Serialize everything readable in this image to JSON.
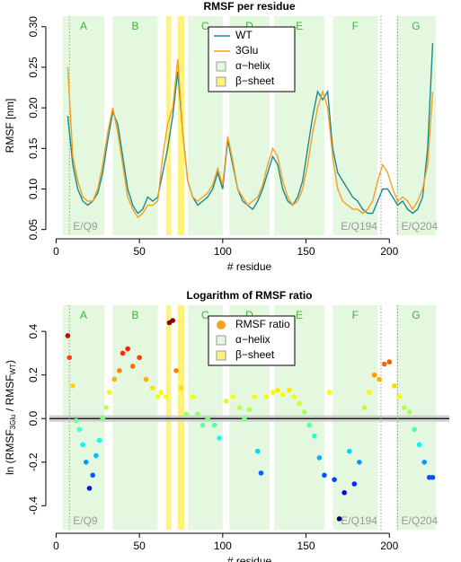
{
  "chart_data": [
    {
      "type": "line",
      "title": "RMSF per residue",
      "xlabel": "# residue",
      "ylabel": "RMSF [nm]",
      "x": [
        7,
        10,
        13,
        16,
        19,
        22,
        25,
        28,
        31,
        34,
        37,
        40,
        43,
        46,
        49,
        52,
        55,
        58,
        61,
        64,
        67,
        70,
        73,
        76,
        79,
        82,
        85,
        88,
        91,
        94,
        97,
        100,
        103,
        106,
        109,
        112,
        115,
        118,
        121,
        124,
        127,
        130,
        133,
        136,
        139,
        142,
        145,
        148,
        151,
        154,
        157,
        160,
        163,
        166,
        169,
        172,
        175,
        178,
        181,
        184,
        187,
        190,
        193,
        196,
        199,
        202,
        205,
        208,
        211,
        214,
        217,
        220,
        223,
        226
      ],
      "series": [
        {
          "name": "WT",
          "color": "#1b8a8f",
          "values": [
            0.19,
            0.13,
            0.1,
            0.085,
            0.08,
            0.085,
            0.095,
            0.12,
            0.16,
            0.195,
            0.18,
            0.14,
            0.1,
            0.08,
            0.07,
            0.075,
            0.09,
            0.085,
            0.09,
            0.12,
            0.15,
            0.19,
            0.245,
            0.17,
            0.11,
            0.09,
            0.08,
            0.085,
            0.09,
            0.1,
            0.12,
            0.1,
            0.16,
            0.13,
            0.1,
            0.085,
            0.08,
            0.075,
            0.085,
            0.1,
            0.12,
            0.14,
            0.13,
            0.1,
            0.085,
            0.08,
            0.09,
            0.11,
            0.15,
            0.19,
            0.22,
            0.21,
            0.22,
            0.15,
            0.12,
            0.11,
            0.1,
            0.09,
            0.085,
            0.075,
            0.07,
            0.07,
            0.085,
            0.1,
            0.1,
            0.09,
            0.08,
            0.085,
            0.075,
            0.07,
            0.075,
            0.09,
            0.15,
            0.28
          ]
        },
        {
          "name": "3Glu",
          "color": "#f4a020",
          "values": [
            0.25,
            0.14,
            0.11,
            0.09,
            0.085,
            0.085,
            0.1,
            0.13,
            0.17,
            0.2,
            0.17,
            0.13,
            0.09,
            0.075,
            0.065,
            0.07,
            0.08,
            0.08,
            0.085,
            0.14,
            0.18,
            0.2,
            0.26,
            0.17,
            0.11,
            0.09,
            0.085,
            0.09,
            0.095,
            0.105,
            0.125,
            0.105,
            0.165,
            0.135,
            0.1,
            0.09,
            0.08,
            0.085,
            0.09,
            0.105,
            0.13,
            0.15,
            0.14,
            0.11,
            0.09,
            0.08,
            0.085,
            0.1,
            0.13,
            0.17,
            0.2,
            0.22,
            0.2,
            0.14,
            0.1,
            0.085,
            0.08,
            0.075,
            0.075,
            0.07,
            0.075,
            0.085,
            0.11,
            0.13,
            0.12,
            0.1,
            0.085,
            0.09,
            0.085,
            0.075,
            0.085,
            0.1,
            0.13,
            0.22
          ]
        }
      ],
      "xlim": [
        -4,
        236
      ],
      "xticks": [
        0,
        50,
        100,
        150,
        200
      ],
      "ylim": [
        0.043,
        0.313
      ],
      "yticks": [
        0.05,
        {
          "value": 0.1,
          "label": "0.10"
        },
        0.15,
        {
          "value": 0.2,
          "label": "0.20"
        },
        0.25,
        {
          "value": 0.3,
          "label": "0.30"
        }
      ],
      "helix_label": "α−helix",
      "helix_color": "#e4f7df",
      "sheet_label": "β−sheet",
      "sheet_color": "#fff27a",
      "helices": [
        {
          "label": "A",
          "range": [
            4,
            29
          ]
        },
        {
          "label": "B",
          "range": [
            34,
            61
          ]
        },
        {
          "label": "C",
          "range": [
            79,
            100
          ]
        },
        {
          "label": "D",
          "range": [
            104,
            128
          ]
        },
        {
          "label": "E",
          "range": [
            131,
            161
          ]
        },
        {
          "label": "F",
          "range": [
            166,
            193
          ]
        },
        {
          "label": "G",
          "range": [
            204,
            228
          ]
        }
      ],
      "sheets": [
        [
          66,
          69
        ],
        [
          73,
          77
        ]
      ],
      "markers": [
        {
          "x": 8,
          "label": "E/Q9",
          "anchor": "start"
        },
        {
          "x": 195,
          "label": "E/Q194",
          "anchor": "end"
        },
        {
          "x": 205,
          "label": "E/Q204",
          "anchor": "start"
        }
      ],
      "region_label_color": "#3cb43c",
      "marker_color": "#9a9a9a",
      "legend": "top"
    },
    {
      "type": "scatter",
      "title": "Logarithm of RMSF ratio",
      "xlabel": "# residue",
      "ylabel": [
        "ln (RMSF",
        "3Glu",
        " / RMSF",
        "WT",
        ")"
      ],
      "x": [
        7,
        8,
        10,
        12,
        14,
        16,
        18,
        20,
        22,
        24,
        26,
        28,
        30,
        32,
        35,
        38,
        40,
        43,
        46,
        50,
        54,
        58,
        61,
        63,
        66,
        68,
        70,
        72,
        75,
        78,
        82,
        85,
        88,
        91,
        95,
        98,
        102,
        106,
        110,
        113,
        116,
        119,
        121,
        123,
        126,
        130,
        133,
        136,
        140,
        143,
        146,
        149,
        152,
        155,
        158,
        161,
        164,
        167,
        170,
        173,
        176,
        179,
        182,
        185,
        188,
        191,
        194,
        197,
        200,
        203,
        206,
        209,
        212,
        215,
        218,
        221,
        224,
        226
      ],
      "series": [
        {
          "name": "RMSF ratio",
          "color": "#f4a020",
          "values": [
            0.38,
            0.28,
            0.15,
            -0.01,
            -0.05,
            -0.12,
            -0.2,
            -0.32,
            -0.26,
            -0.17,
            -0.1,
            0.0,
            0.05,
            0.12,
            0.18,
            0.22,
            0.3,
            0.32,
            0.24,
            0.28,
            0.18,
            0.14,
            0.1,
            0.12,
            0.1,
            0.44,
            0.45,
            0.22,
            0.14,
            0.02,
            0.1,
            0.02,
            -0.03,
            0.0,
            -0.03,
            -0.09,
            0.08,
            0.1,
            0.05,
            0.0,
            0.04,
            0.1,
            -0.15,
            -0.25,
            0.1,
            0.12,
            0.13,
            0.11,
            0.13,
            0.1,
            0.07,
            0.03,
            -0.03,
            -0.08,
            -0.18,
            -0.26,
            0.12,
            -0.28,
            -0.46,
            -0.34,
            -0.15,
            -0.3,
            -0.2,
            0.05,
            0.12,
            0.2,
            0.18,
            0.25,
            0.26,
            0.15,
            0.1,
            0.05,
            0.03,
            -0.05,
            -0.12,
            -0.2,
            -0.27,
            -0.27
          ]
        }
      ],
      "colormap": "jet",
      "clim": [
        -0.45,
        0.45
      ],
      "xlim": [
        -4,
        236
      ],
      "xticks": [
        0,
        50,
        100,
        150,
        200
      ],
      "ylim": [
        -0.51,
        0.52
      ],
      "yticks": [
        -0.4,
        -0.2,
        {
          "value": 0,
          "label": "0.0"
        },
        0.2,
        0.4
      ],
      "hline": 0,
      "band": [
        -0.015,
        0.015
      ],
      "helix_label": "α−helix",
      "helix_color": "#e4f7df",
      "sheet_label": "β−sheet",
      "sheet_color": "#fff27a",
      "helices": [
        {
          "label": "A",
          "range": [
            4,
            29
          ]
        },
        {
          "label": "B",
          "range": [
            34,
            61
          ]
        },
        {
          "label": "C",
          "range": [
            79,
            100
          ]
        },
        {
          "label": "D",
          "range": [
            104,
            128
          ]
        },
        {
          "label": "E",
          "range": [
            131,
            161
          ]
        },
        {
          "label": "F",
          "range": [
            166,
            193
          ]
        },
        {
          "label": "G",
          "range": [
            204,
            228
          ]
        }
      ],
      "sheets": [
        [
          66,
          69
        ],
        [
          73,
          77
        ]
      ],
      "markers": [
        {
          "x": 8,
          "label": "E/Q9",
          "anchor": "start"
        },
        {
          "x": 195,
          "label": "E/Q194",
          "anchor": "end"
        },
        {
          "x": 205,
          "label": "E/Q204",
          "anchor": "start"
        }
      ],
      "region_label_color": "#3cb43c",
      "marker_color": "#9a9a9a",
      "legend": "top"
    }
  ]
}
